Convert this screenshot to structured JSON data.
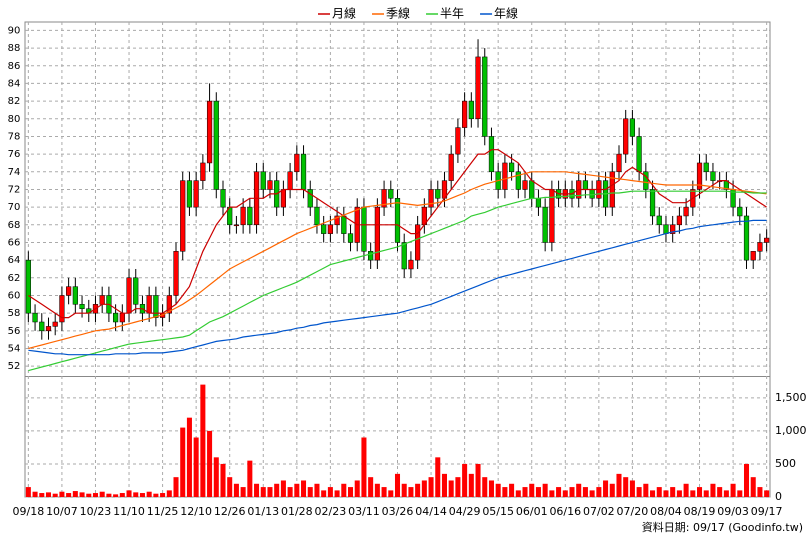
{
  "chart_data": [
    {
      "type": "candlestick",
      "categories": [
        "09/18",
        null,
        null,
        null,
        null,
        "10/07",
        null,
        null,
        null,
        null,
        "10/23",
        null,
        null,
        null,
        null,
        "11/10",
        null,
        null,
        null,
        null,
        "11/25",
        null,
        null,
        null,
        null,
        "12/10",
        null,
        null,
        null,
        null,
        "12/26",
        null,
        null,
        null,
        null,
        "01/13",
        null,
        null,
        null,
        null,
        "01/28",
        null,
        null,
        null,
        null,
        "02/23",
        null,
        null,
        null,
        null,
        "03/11",
        null,
        null,
        null,
        null,
        "03/26",
        null,
        null,
        null,
        null,
        "04/14",
        null,
        null,
        null,
        null,
        "04/29",
        null,
        null,
        null,
        null,
        "05/15",
        null,
        null,
        null,
        null,
        "06/01",
        null,
        null,
        null,
        null,
        "06/16",
        null,
        null,
        null,
        null,
        "07/02",
        null,
        null,
        null,
        null,
        "07/20",
        null,
        null,
        null,
        null,
        "08/04",
        null,
        null,
        null,
        null,
        "08/19",
        null,
        null,
        null,
        null,
        "09/03",
        null,
        null,
        null,
        null,
        "09/17"
      ],
      "open": [
        64,
        58,
        57,
        56,
        56.5,
        57,
        60,
        61,
        59,
        58.5,
        58,
        59,
        60,
        58,
        57,
        58,
        62,
        59,
        58,
        60,
        57.5,
        58,
        60,
        65,
        73,
        70,
        73,
        75,
        82,
        72,
        70,
        68,
        68,
        70,
        68,
        74,
        72,
        73,
        70,
        72,
        74,
        76,
        72,
        70,
        68,
        67,
        68,
        69,
        67,
        66,
        70,
        65,
        64,
        70,
        72,
        71,
        66,
        63,
        64,
        68,
        70,
        72,
        71,
        73,
        76,
        79,
        82,
        80,
        87,
        78,
        74,
        72,
        75,
        74,
        72,
        73,
        71,
        70,
        66,
        72,
        71,
        72,
        71,
        73,
        72,
        71,
        73,
        70,
        74,
        76,
        80,
        78,
        74,
        72,
        69,
        68,
        67,
        68,
        69,
        70,
        72,
        75,
        74,
        73,
        73,
        72,
        70,
        69,
        64,
        65,
        66
      ],
      "high": [
        65,
        59,
        58,
        57.5,
        58,
        61,
        62,
        62,
        60,
        59.5,
        60,
        61,
        61,
        59,
        59,
        63,
        63,
        60,
        61,
        61,
        59,
        61,
        66,
        74,
        74,
        74,
        76,
        84,
        83,
        73,
        71,
        69,
        71,
        71,
        75,
        75,
        74,
        74,
        73,
        75,
        77,
        77,
        73,
        71,
        69,
        69,
        70,
        70,
        68,
        71,
        71,
        66,
        71,
        73,
        73,
        72,
        67,
        65,
        69,
        71,
        73,
        73,
        74,
        77,
        80,
        83,
        83,
        89,
        88,
        79,
        75,
        76,
        76,
        75,
        74,
        74,
        72,
        71,
        73,
        73,
        73,
        73,
        74,
        74,
        73,
        74,
        74,
        75,
        77,
        81,
        81,
        79,
        75,
        73,
        70,
        69,
        69,
        70,
        71,
        73,
        76,
        76,
        75,
        74,
        74,
        73,
        71,
        70,
        65,
        67,
        67.5
      ],
      "low": [
        57,
        56,
        55,
        55,
        55.5,
        56,
        59,
        58,
        57.5,
        57,
        57,
        58,
        57,
        56,
        56,
        57,
        58,
        57,
        57,
        56.5,
        56.5,
        57,
        59,
        64,
        69,
        69,
        72,
        74,
        71,
        69,
        67,
        67,
        67,
        67,
        67,
        71,
        71,
        69,
        69,
        71,
        73,
        71,
        69,
        67,
        66,
        66,
        67,
        66,
        65,
        65,
        64,
        63,
        63,
        69,
        70,
        65,
        62,
        62,
        63,
        67,
        69,
        70,
        70,
        72,
        75,
        78,
        79,
        79,
        77,
        73,
        71,
        71,
        73,
        71,
        71,
        70,
        69,
        65,
        65,
        70,
        70,
        70,
        70,
        71,
        70,
        70,
        69,
        69,
        73,
        75,
        77,
        73,
        71,
        68,
        67,
        66,
        66,
        67,
        68,
        69,
        71,
        73,
        72,
        72,
        71,
        69,
        68,
        63,
        63,
        64,
        65
      ],
      "close": [
        58,
        57,
        56,
        56.5,
        57,
        60,
        61,
        59,
        58.5,
        58,
        59,
        60,
        58,
        57,
        58,
        62,
        59,
        58,
        60,
        57.5,
        58,
        60,
        65,
        73,
        70,
        73,
        75,
        82,
        72,
        70,
        68,
        68,
        70,
        68,
        74,
        72,
        73,
        70,
        72,
        74,
        76,
        72,
        70,
        68,
        67,
        68,
        69,
        67,
        66,
        70,
        65,
        64,
        70,
        72,
        71,
        66,
        63,
        64,
        68,
        70,
        72,
        71,
        73,
        76,
        79,
        82,
        80,
        87,
        78,
        74,
        72,
        75,
        74,
        72,
        73,
        71,
        70,
        66,
        72,
        71,
        72,
        71,
        73,
        72,
        71,
        73,
        70,
        74,
        76,
        80,
        78,
        74,
        72,
        69,
        68,
        67,
        68,
        69,
        70,
        72,
        75,
        74,
        73,
        73,
        72,
        70,
        69,
        64,
        65,
        66,
        66.5
      ],
      "up_color": "#ff0000",
      "down_color": "#00c000",
      "series": [
        {
          "name": "月線",
          "color": "#cc0000",
          "values": [
            60,
            59.5,
            59,
            58.5,
            58,
            57.5,
            57.5,
            58,
            58,
            58,
            58.5,
            59,
            59,
            58.5,
            58,
            58,
            58.5,
            58.5,
            58,
            58,
            58,
            58.5,
            59,
            60,
            61,
            63,
            65,
            66.5,
            68,
            69,
            70,
            70,
            70.5,
            71,
            71,
            71,
            71.5,
            71.5,
            72,
            72,
            72,
            72,
            71.5,
            71,
            70.5,
            70,
            69.5,
            69,
            68.5,
            68,
            68,
            68,
            68,
            68,
            68,
            68,
            67.5,
            67,
            67,
            68,
            69,
            70,
            71,
            72,
            73,
            74,
            75,
            76,
            76,
            76.5,
            76.5,
            76,
            75.5,
            75,
            74,
            73,
            72.5,
            72,
            72,
            71.5,
            71.5,
            71.5,
            72,
            72,
            72,
            72,
            72,
            72.5,
            73,
            74,
            74.5,
            74,
            73.5,
            72.5,
            71.5,
            71,
            70.5,
            70.5,
            70.5,
            71,
            71.5,
            72,
            72.5,
            73,
            73,
            72.5,
            72,
            71.5,
            71,
            70.5,
            70
          ]
        },
        {
          "name": "季線",
          "color": "#ff6600",
          "values": [
            54,
            54.2,
            54.4,
            54.6,
            54.8,
            55,
            55.2,
            55.4,
            55.6,
            55.8,
            56,
            56.1,
            56.2,
            56.4,
            56.6,
            56.8,
            57,
            57.2,
            57.4,
            57.6,
            57.8,
            58.2,
            58.6,
            59,
            59.5,
            60,
            60.6,
            61.2,
            61.8,
            62.4,
            63,
            63.4,
            63.8,
            64.2,
            64.6,
            65,
            65.4,
            65.8,
            66.2,
            66.6,
            67,
            67.3,
            67.6,
            67.9,
            68.2,
            68.5,
            68.8,
            69.1,
            69.4,
            69.7,
            70,
            70.1,
            70.2,
            70.3,
            70.4,
            70.5,
            70.4,
            70.3,
            70.2,
            70.3,
            70.4,
            70.5,
            70.7,
            71,
            71.3,
            71.6,
            72,
            72.3,
            72.6,
            72.8,
            73,
            73.2,
            73.4,
            73.6,
            73.8,
            74,
            74,
            74,
            74,
            74,
            74,
            73.9,
            73.8,
            73.7,
            73.6,
            73.5,
            73.4,
            73.3,
            73.2,
            73.1,
            73,
            72.9,
            72.8,
            72.7,
            72.6,
            72.5,
            72.5,
            72.5,
            72.5,
            72.5,
            72.5,
            72.4,
            72.3,
            72.2,
            72.1,
            72,
            71.9,
            71.8,
            71.7,
            71.6,
            71.5
          ]
        },
        {
          "name": "半年",
          "color": "#33cc33",
          "values": [
            51.5,
            51.7,
            51.9,
            52.1,
            52.3,
            52.5,
            52.7,
            52.9,
            53.1,
            53.3,
            53.5,
            53.7,
            53.9,
            54.1,
            54.3,
            54.5,
            54.6,
            54.7,
            54.8,
            54.9,
            55,
            55.1,
            55.2,
            55.3,
            55.5,
            56,
            56.5,
            57,
            57.3,
            57.6,
            58,
            58.4,
            58.8,
            59.2,
            59.6,
            60,
            60.3,
            60.6,
            60.9,
            61.2,
            61.5,
            61.9,
            62.3,
            62.7,
            63.1,
            63.5,
            63.7,
            63.9,
            64.1,
            64.3,
            64.5,
            64.7,
            64.9,
            65.1,
            65.3,
            65.5,
            65.8,
            66.1,
            66.4,
            66.7,
            67,
            67.3,
            67.6,
            67.9,
            68.2,
            68.5,
            69,
            69.2,
            69.4,
            69.7,
            70,
            70.2,
            70.4,
            70.6,
            70.8,
            71,
            71,
            71.1,
            71.1,
            71.2,
            71.2,
            71.3,
            71.3,
            71.4,
            71.4,
            71.5,
            71.5,
            71.6,
            71.6,
            71.7,
            71.8,
            71.8,
            71.8,
            71.8,
            71.8,
            71.8,
            71.8,
            71.8,
            71.8,
            71.8,
            71.8,
            71.8,
            71.8,
            71.8,
            71.8,
            71.7,
            71.7,
            71.7,
            71.6,
            71.6,
            71.6
          ]
        },
        {
          "name": "年線",
          "color": "#0055cc",
          "values": [
            53.8,
            53.7,
            53.6,
            53.5,
            53.4,
            53.4,
            53.3,
            53.3,
            53.3,
            53.3,
            53.3,
            53.3,
            53.3,
            53.4,
            53.4,
            53.4,
            53.4,
            53.5,
            53.5,
            53.5,
            53.5,
            53.6,
            53.7,
            53.8,
            54,
            54.2,
            54.4,
            54.6,
            54.8,
            54.9,
            55,
            55.1,
            55.3,
            55.4,
            55.5,
            55.6,
            55.7,
            55.8,
            56,
            56.1,
            56.3,
            56.4,
            56.6,
            56.7,
            56.9,
            57,
            57.1,
            57.2,
            57.3,
            57.4,
            57.5,
            57.6,
            57.7,
            57.8,
            57.9,
            58,
            58.2,
            58.4,
            58.6,
            58.8,
            59,
            59.3,
            59.6,
            59.9,
            60.2,
            60.5,
            60.8,
            61.1,
            61.4,
            61.7,
            62,
            62.2,
            62.4,
            62.6,
            62.8,
            63,
            63.2,
            63.4,
            63.6,
            63.8,
            64,
            64.2,
            64.4,
            64.6,
            64.8,
            65,
            65.2,
            65.4,
            65.6,
            65.8,
            66,
            66.2,
            66.4,
            66.6,
            66.8,
            67,
            67.2,
            67.3,
            67.5,
            67.6,
            67.8,
            67.9,
            68,
            68.1,
            68.2,
            68.3,
            68.4,
            68.4,
            68.5,
            68.5,
            68.5
          ]
        }
      ],
      "ylim": [
        51,
        90.5
      ],
      "yticks": [
        52,
        54,
        56,
        58,
        60,
        62,
        64,
        66,
        68,
        70,
        72,
        74,
        76,
        78,
        80,
        82,
        84,
        86,
        88,
        90
      ],
      "grid": true,
      "legend": "top"
    },
    {
      "type": "bar",
      "color": "#ff0000",
      "values": [
        150,
        80,
        60,
        70,
        50,
        80,
        60,
        90,
        70,
        50,
        60,
        80,
        50,
        40,
        60,
        100,
        70,
        60,
        80,
        50,
        60,
        100,
        300,
        1050,
        1200,
        900,
        1700,
        1000,
        600,
        500,
        300,
        200,
        150,
        550,
        200,
        150,
        150,
        200,
        250,
        150,
        200,
        250,
        150,
        200,
        100,
        150,
        100,
        200,
        150,
        250,
        900,
        300,
        200,
        150,
        100,
        350,
        200,
        150,
        200,
        250,
        300,
        600,
        350,
        250,
        300,
        500,
        350,
        500,
        300,
        250,
        200,
        150,
        200,
        100,
        150,
        200,
        150,
        200,
        100,
        150,
        100,
        150,
        200,
        150,
        100,
        150,
        250,
        200,
        350,
        300,
        250,
        150,
        200,
        100,
        150,
        100,
        150,
        100,
        200,
        100,
        150,
        100,
        200,
        150,
        100,
        200,
        100,
        500,
        300,
        150,
        100
      ],
      "ylim": [
        0,
        1800
      ],
      "yticks": [
        0,
        500,
        {
          "value": 1000,
          "label": "1,000"
        },
        {
          "value": 1500,
          "label": "1,500"
        }
      ],
      "grid": true
    }
  ],
  "footer": "資料日期: 09/17  (Goodinfo.tw)"
}
